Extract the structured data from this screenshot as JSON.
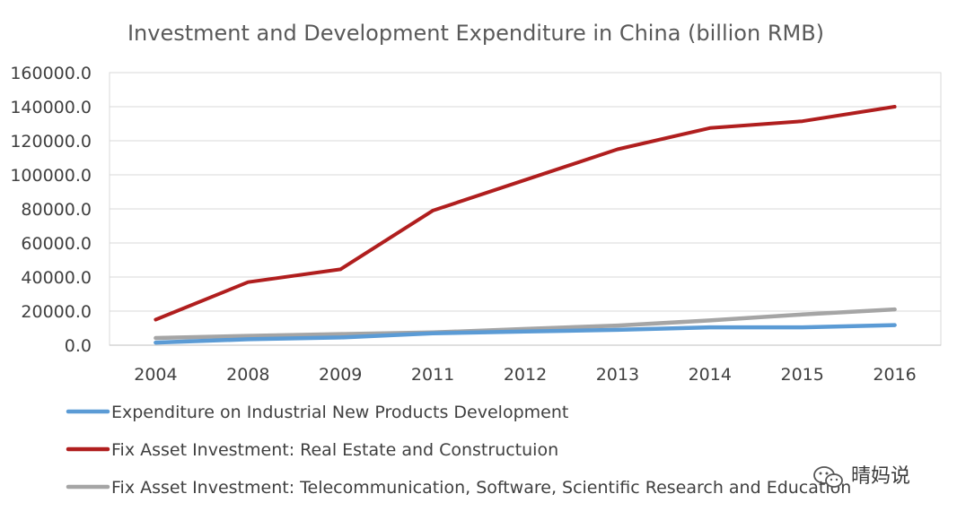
{
  "chart_data": {
    "type": "line",
    "title": "Investment and Development Expenditure in China (billion RMB)",
    "xlabel": "",
    "ylabel": "",
    "categories": [
      "2004",
      "2008",
      "2009",
      "2011",
      "2012",
      "2013",
      "2014",
      "2015",
      "2016"
    ],
    "y_ticks": [
      "0.0",
      "20000.0",
      "40000.0",
      "60000.0",
      "80000.0",
      "100000.0",
      "120000.0",
      "140000.0",
      "160000.0"
    ],
    "ylim": [
      0,
      160000
    ],
    "grid": true,
    "legend_position": "bottom",
    "series": [
      {
        "name": "Expenditure on Industrial New Products Development",
        "color": "#5B9BD5",
        "values": [
          1500,
          3500,
          4500,
          7000,
          8000,
          9000,
          10500,
          10500,
          11800
        ]
      },
      {
        "name": "Fix Asset Investment: Real Estate and Constructuion",
        "color": "#B01E1E",
        "values": [
          15000,
          37000,
          44500,
          79000,
          97000,
          115000,
          127500,
          131500,
          140000
        ]
      },
      {
        "name": "Fix Asset Investment: Telecommunication, Software, Scientific Research and Education",
        "color": "#A5A5A5",
        "values": [
          4200,
          5500,
          6500,
          7500,
          9500,
          11500,
          14500,
          18000,
          21000
        ]
      }
    ]
  },
  "watermark": {
    "text": "晴妈说",
    "icon": "wechat-icon"
  },
  "colors": {
    "grid": "#D9D9D9",
    "axis": "#BFBFBF",
    "text": "#404040"
  }
}
